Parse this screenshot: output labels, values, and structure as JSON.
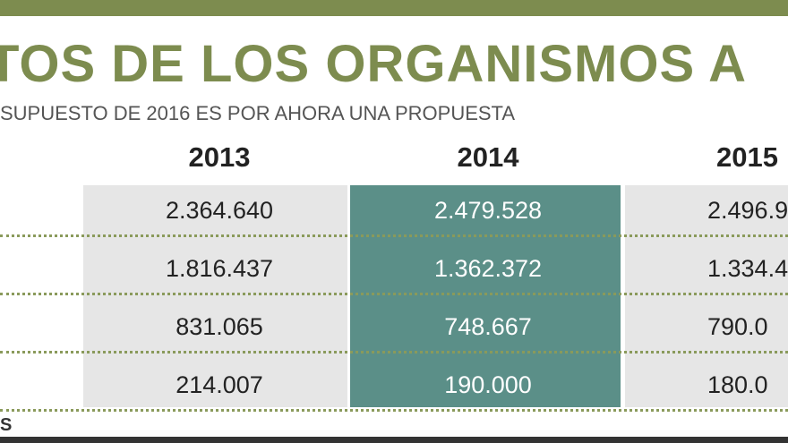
{
  "header": {
    "title": "TOS DE LOS ORGANISMOS A",
    "subtitle": "SUPUESTO DE 2016 ES POR AHORA UNA PROPUESTA"
  },
  "table": {
    "columns": [
      "2013",
      "2014",
      "2015"
    ],
    "rows": [
      [
        "2.364.640",
        "2.479.528",
        "2.496.9"
      ],
      [
        "1.816.437",
        "1.362.372",
        "1.334.4"
      ],
      [
        "831.065",
        "748.667",
        "790.0"
      ],
      [
        "214.007",
        "190.000",
        "180.0"
      ]
    ]
  },
  "footer": {
    "source": "S"
  }
}
